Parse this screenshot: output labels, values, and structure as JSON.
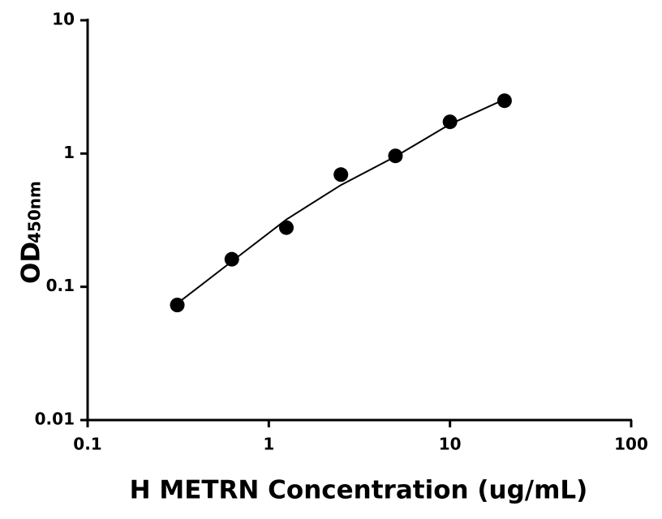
{
  "chart_data": {
    "type": "scatter",
    "x_label": "H METRN Concentration (ug/mL)",
    "y_label": "OD",
    "y_label_subscript": "450nm",
    "x": [
      0.3125,
      0.625,
      1.25,
      2.5,
      5,
      10,
      20
    ],
    "values": [
      0.073,
      0.161,
      0.278,
      0.695,
      0.96,
      1.73,
      2.49
    ],
    "color": "#000000",
    "fit": {
      "x": [
        0.3125,
        0.625,
        1.25,
        2.5,
        5,
        10,
        20
      ],
      "values": [
        0.075,
        0.155,
        0.32,
        0.58,
        0.95,
        1.66,
        2.55
      ]
    },
    "xlim": [
      0.1,
      100
    ],
    "xticks": [
      0.1,
      1,
      10,
      100
    ],
    "ylim": [
      0.01,
      10
    ],
    "yticks": [
      0.01,
      0.1,
      1,
      10
    ],
    "log_x": true,
    "log_y": true
  }
}
